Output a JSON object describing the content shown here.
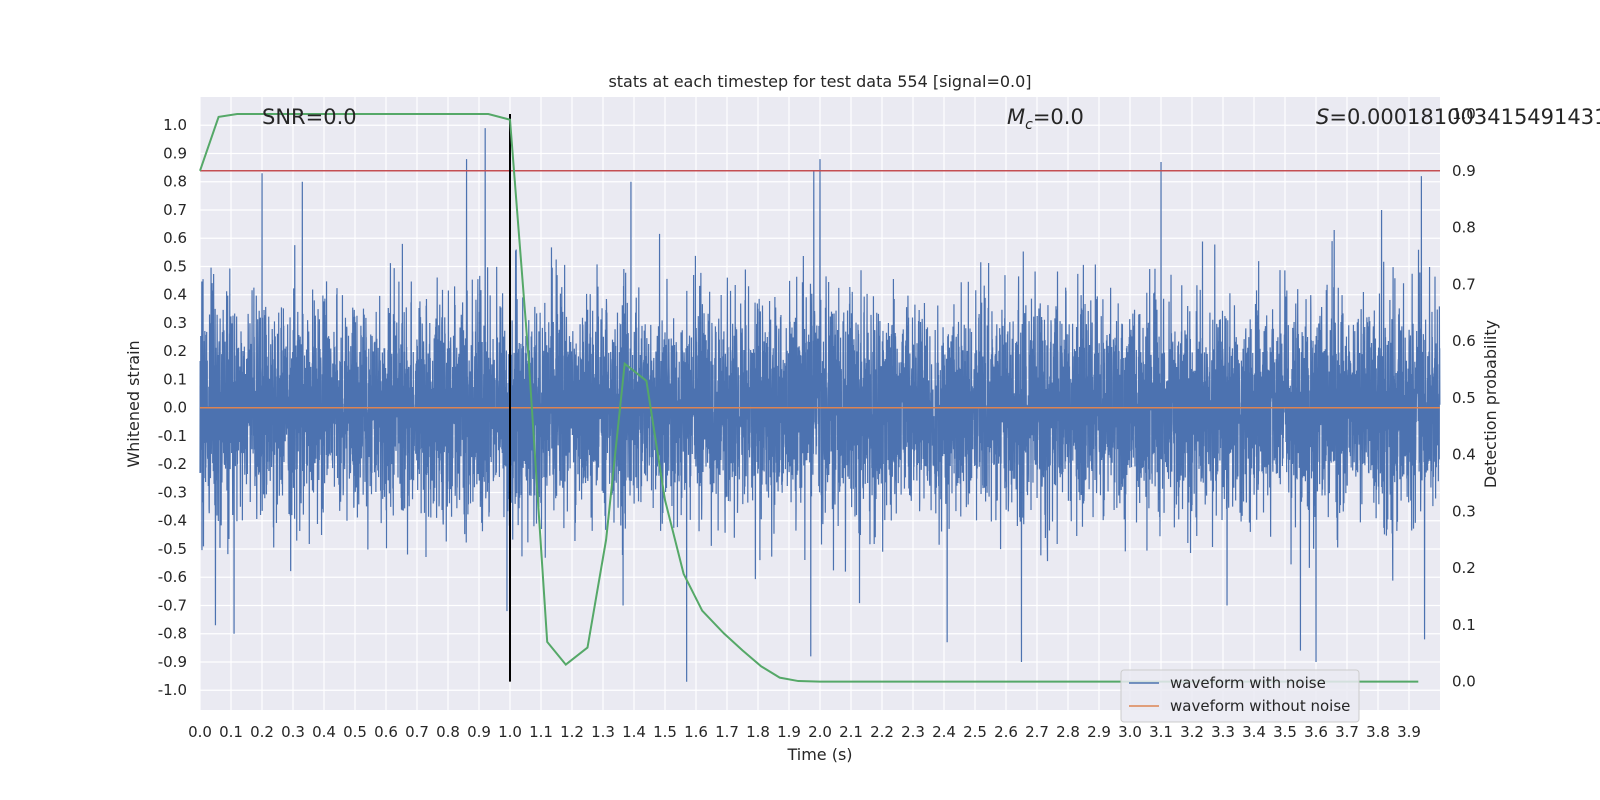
{
  "chart_data": {
    "type": "line",
    "title": "stats at each timestep for test data 554 [signal=0.0]",
    "xlabel": "Time (s)",
    "ylabel_left": "Whitened strain",
    "ylabel_right": "Detection probability",
    "xlim": [
      0.0,
      4.0
    ],
    "ylim_left": [
      -1.07,
      1.1
    ],
    "ylim_right": [
      -0.05,
      1.03
    ],
    "x_ticks": [
      "0.0",
      "0.1",
      "0.2",
      "0.3",
      "0.4",
      "0.5",
      "0.6",
      "0.7",
      "0.8",
      "0.9",
      "1.0",
      "1.1",
      "1.2",
      "1.3",
      "1.4",
      "1.5",
      "1.6",
      "1.7",
      "1.8",
      "1.9",
      "2.0",
      "2.1",
      "2.2",
      "2.3",
      "2.4",
      "2.5",
      "2.6",
      "2.7",
      "2.8",
      "2.9",
      "3.0",
      "3.1",
      "3.2",
      "3.3",
      "3.4",
      "3.5",
      "3.6",
      "3.7",
      "3.8",
      "3.9"
    ],
    "y_ticks_left": [
      "-1.0",
      "-0.9",
      "-0.8",
      "-0.7",
      "-0.6",
      "-0.5",
      "-0.4",
      "-0.3",
      "-0.2",
      "-0.1",
      "0.0",
      "0.1",
      "0.2",
      "0.3",
      "0.4",
      "0.5",
      "0.6",
      "0.7",
      "0.8",
      "0.9",
      "1.0"
    ],
    "y_ticks_right": [
      "0.0",
      "0.1",
      "0.2",
      "0.3",
      "0.4",
      "0.5",
      "0.6",
      "0.7",
      "0.8",
      "0.9",
      "1.0"
    ],
    "grid": true,
    "legend_position": "lower-right",
    "annotations": {
      "snr": "SNR=0.0",
      "mc_symbol": "M",
      "mc_sub": "c",
      "mc_value": "=0.0",
      "s_symbol": "S",
      "s_value": "=0.000181003415491431"
    },
    "series": [
      {
        "name": "waveform with noise",
        "color": "#4c72b0",
        "axis": "left",
        "kind": "noise",
        "sample_rate": 2048,
        "typical_amplitude": 0.3,
        "peaks": [
          [
            0.2,
            0.83
          ],
          [
            0.33,
            0.8
          ],
          [
            0.86,
            0.88
          ],
          [
            0.92,
            0.99
          ],
          [
            1.02,
            0.56
          ],
          [
            1.39,
            0.8
          ],
          [
            1.98,
            0.84
          ],
          [
            2.0,
            0.88
          ],
          [
            3.1,
            0.87
          ],
          [
            3.94,
            0.82
          ],
          [
            0.11,
            -0.8
          ],
          [
            0.05,
            -0.77
          ],
          [
            0.99,
            -0.72
          ],
          [
            1.57,
            -0.97
          ],
          [
            1.97,
            -0.88
          ],
          [
            2.41,
            -0.83
          ],
          [
            2.65,
            -0.9
          ],
          [
            3.55,
            -0.86
          ],
          [
            3.6,
            -0.9
          ],
          [
            3.95,
            -0.82
          ]
        ]
      },
      {
        "name": "waveform without noise",
        "color": "#dd8452",
        "axis": "left",
        "x": [
          0.0,
          4.0
        ],
        "y": [
          0.0,
          0.0
        ]
      },
      {
        "name": "detection probability",
        "color": "#55a868",
        "axis": "right",
        "x": [
          0.0,
          0.06,
          0.12,
          0.19,
          0.25,
          0.31,
          0.37,
          0.44,
          0.5,
          0.56,
          0.62,
          0.69,
          0.75,
          0.81,
          0.87,
          0.93,
          1.0,
          1.06,
          1.12,
          1.18,
          1.25,
          1.31,
          1.37,
          1.44,
          1.5,
          1.56,
          1.62,
          1.69,
          1.75,
          1.81,
          1.87,
          1.93,
          2.0,
          2.06,
          2.12,
          2.18,
          2.25,
          2.31,
          2.37,
          2.44,
          2.5,
          2.56,
          2.62,
          2.69,
          2.75,
          2.81,
          2.87,
          2.93,
          3.0,
          3.06,
          3.12,
          3.18,
          3.25,
          3.31,
          3.37,
          3.44,
          3.5,
          3.56,
          3.62,
          3.69,
          3.75,
          3.81,
          3.87,
          3.93
        ],
        "y": [
          0.9,
          0.995,
          1.0,
          1.0,
          1.0,
          1.0,
          1.0,
          1.0,
          1.0,
          1.0,
          1.0,
          1.0,
          1.0,
          1.0,
          1.0,
          1.0,
          0.99,
          0.57,
          0.07,
          0.03,
          0.06,
          0.25,
          0.56,
          0.53,
          0.32,
          0.19,
          0.125,
          0.085,
          0.055,
          0.027,
          0.007,
          0.001,
          0.0,
          0.0,
          0.0,
          0.0,
          0.0,
          0.0,
          0.0,
          0.0,
          0.0,
          0.0,
          0.0,
          0.0,
          0.0,
          0.0,
          0.0,
          0.0,
          0.0,
          0.0,
          0.0,
          0.0,
          0.0,
          0.0,
          0.0,
          0.0,
          0.0,
          0.0,
          0.0,
          0.0,
          0.0,
          0.0,
          0.0,
          0.0
        ]
      }
    ],
    "reference_lines": [
      {
        "orientation": "horizontal",
        "axis": "right",
        "value": 0.9,
        "color": "#c44e52"
      },
      {
        "orientation": "vertical",
        "x": 1.0,
        "y_range_right": [
          0.0,
          1.0
        ],
        "color": "#000000"
      }
    ]
  }
}
